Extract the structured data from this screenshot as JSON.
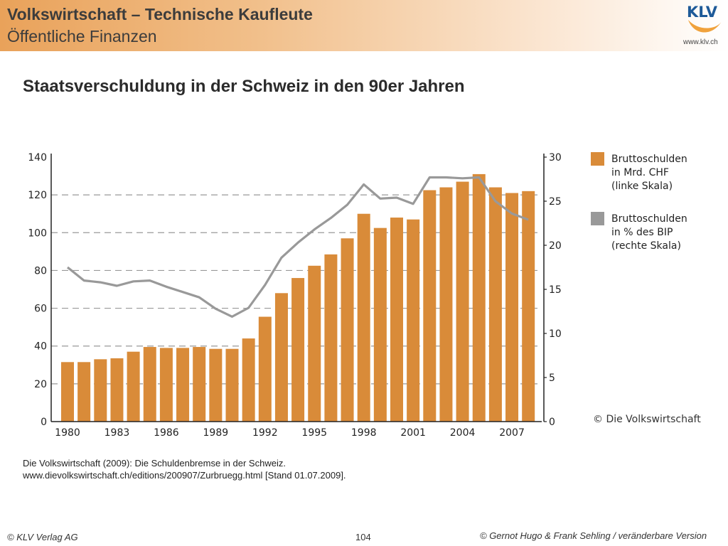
{
  "header": {
    "title": "Volkswirtschaft – Technische Kaufleute",
    "subtitle": "Öffentliche Finanzen",
    "logo_text": "KLV",
    "logo_url": "www.klv.ch"
  },
  "slide_title": "Staatsverschuldung in der Schweiz in den 90er Jahren",
  "chart_data": {
    "type": "bar",
    "years": [
      1980,
      1981,
      1982,
      1983,
      1984,
      1985,
      1986,
      1987,
      1988,
      1989,
      1990,
      1991,
      1992,
      1993,
      1994,
      1995,
      1996,
      1997,
      1998,
      1999,
      2000,
      2001,
      2002,
      2003,
      2004,
      2005,
      2006,
      2007,
      2008
    ],
    "x_tick_labels": [
      "1980",
      "1983",
      "1986",
      "1989",
      "1992",
      "1995",
      "1998",
      "2001",
      "2004",
      "2007"
    ],
    "series": [
      {
        "name": "Bruttoschulden in Mrd. CHF (linke Skala)",
        "type": "bar",
        "axis": "left",
        "color": "#d98b39",
        "values": [
          31.5,
          31.5,
          33,
          33.5,
          37,
          39.5,
          39,
          39,
          39.5,
          38.5,
          38.5,
          44,
          55.5,
          68,
          76,
          82.5,
          88.5,
          97,
          110,
          102.5,
          108,
          107,
          122.5,
          124,
          127,
          131,
          124,
          121,
          122
        ]
      },
      {
        "name": "Bruttoschulden in % des BIP (rechte Skala)",
        "type": "line",
        "axis": "right",
        "color": "#999999",
        "values": [
          17.5,
          16,
          15.8,
          15.4,
          15.9,
          16,
          15.3,
          14.7,
          14.1,
          12.8,
          11.9,
          12.9,
          15.5,
          18.6,
          20.3,
          21.8,
          23.1,
          24.6,
          26.9,
          25.3,
          25.4,
          24.7,
          27.7,
          27.7,
          27.6,
          27.7,
          25,
          23.6,
          22.9
        ]
      }
    ],
    "y_left": {
      "ticks": [
        "0",
        "20",
        "40",
        "60",
        "80",
        "100",
        "120",
        "140"
      ],
      "range": [
        0,
        140
      ]
    },
    "y_right": {
      "ticks": [
        "0",
        "5",
        "10",
        "15",
        "20",
        "25",
        "30"
      ],
      "range": [
        0,
        30
      ]
    },
    "grid": "dashed horizontal",
    "legend_position": "right",
    "legend": [
      {
        "line1": "Bruttoschulden",
        "line2": "in Mrd. CHF",
        "line3": "(linke Skala)",
        "color": "#d98b39"
      },
      {
        "line1": "Bruttoschulden",
        "line2": "in % des BIP",
        "line3": "(rechte Skala)",
        "color": "#999999"
      }
    ],
    "copyright": "© Die Volkswirtschaft"
  },
  "source": {
    "line1": "Die Volkswirtschaft (2009): Die Schuldenbremse in der Schweiz.",
    "line2": "www.dievolkswirtschaft.ch/editions/200907/Zurbruegg.html [Stand 01.07.2009]."
  },
  "footer": {
    "left": "© KLV Verlag AG",
    "page": "104",
    "right": "© Gernot Hugo & Frank Sehling / veränderbare Version"
  }
}
